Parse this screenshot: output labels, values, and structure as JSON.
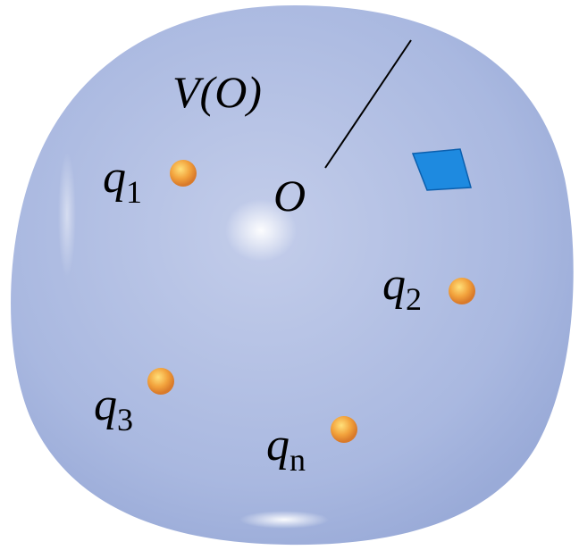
{
  "labels": {
    "volume": "V(O)",
    "origin": "O"
  },
  "charges": [
    {
      "symbol": "q",
      "subscript": "1"
    },
    {
      "symbol": "q",
      "subscript": "2"
    },
    {
      "symbol": "q",
      "subscript": "3"
    },
    {
      "symbol": "q",
      "subscript": "n"
    }
  ]
}
